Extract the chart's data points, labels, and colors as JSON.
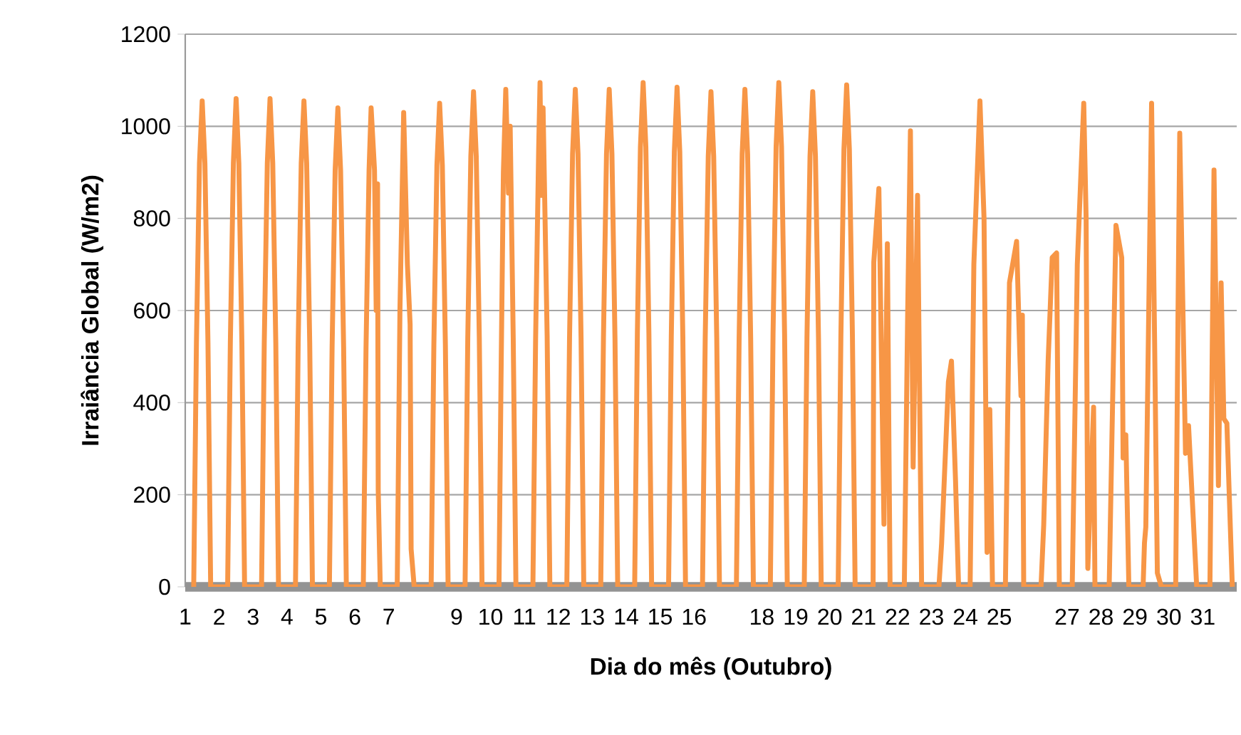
{
  "chart_data": {
    "type": "line",
    "color": "#f79646",
    "xlabel": "Dia do mês (Outubro)",
    "ylabel": "Irraiância Global (W/m2)",
    "grid": "y",
    "xlim": [
      1,
      32
    ],
    "ylim": [
      0,
      1200
    ],
    "yticks": [
      0,
      200,
      400,
      600,
      800,
      1000,
      1200
    ],
    "xticks": [
      1,
      2,
      3,
      4,
      5,
      6,
      7,
      9,
      10,
      11,
      12,
      13,
      14,
      15,
      16,
      18,
      19,
      20,
      21,
      22,
      23,
      24,
      25,
      27,
      28,
      29,
      30,
      31
    ],
    "x": [
      1.25,
      1.33,
      1.42,
      1.5,
      1.58,
      1.67,
      1.75,
      2.25,
      2.33,
      2.42,
      2.5,
      2.58,
      2.67,
      2.75,
      3.25,
      3.33,
      3.42,
      3.5,
      3.58,
      3.67,
      3.75,
      4.25,
      4.33,
      4.42,
      4.5,
      4.58,
      4.67,
      4.75,
      5.25,
      5.33,
      5.42,
      5.5,
      5.58,
      5.67,
      5.75,
      6.25,
      6.33,
      6.42,
      6.48,
      6.58,
      6.63,
      6.67,
      6.69,
      6.75,
      7.25,
      7.33,
      7.44,
      7.55,
      7.63,
      7.66,
      7.75,
      8.25,
      8.33,
      8.42,
      8.5,
      8.58,
      8.67,
      8.75,
      9.25,
      9.33,
      9.42,
      9.5,
      9.58,
      9.67,
      9.75,
      10.25,
      10.31,
      10.38,
      10.45,
      10.53,
      10.58,
      10.67,
      10.75,
      11.25,
      11.33,
      11.42,
      11.46,
      11.5,
      11.55,
      11.67,
      11.75,
      12.25,
      12.33,
      12.42,
      12.5,
      12.58,
      12.67,
      12.75,
      13.25,
      13.33,
      13.42,
      13.5,
      13.58,
      13.67,
      13.75,
      14.25,
      14.33,
      14.42,
      14.5,
      14.58,
      14.67,
      14.75,
      15.25,
      15.33,
      15.42,
      15.5,
      15.58,
      15.67,
      15.75,
      16.25,
      16.33,
      16.42,
      16.5,
      16.58,
      16.67,
      16.75,
      17.25,
      17.33,
      17.42,
      17.5,
      17.58,
      17.67,
      17.75,
      18.25,
      18.33,
      18.42,
      18.5,
      18.58,
      18.67,
      18.75,
      19.25,
      19.33,
      19.42,
      19.5,
      19.58,
      19.67,
      19.75,
      20.25,
      20.33,
      20.42,
      20.5,
      20.58,
      20.67,
      20.75,
      21.28,
      21.3,
      21.45,
      21.6,
      21.7,
      21.78,
      22.2,
      22.3,
      22.38,
      22.46,
      22.59,
      22.71,
      23.22,
      23.3,
      23.5,
      23.59,
      23.71,
      23.8,
      24.14,
      24.25,
      24.43,
      24.55,
      24.64,
      24.72,
      24.8,
      25.18,
      25.3,
      25.51,
      25.64,
      25.68,
      25.72,
      26.23,
      26.31,
      26.44,
      26.56,
      26.69,
      26.77,
      27.15,
      27.3,
      27.49,
      27.56,
      27.61,
      27.78,
      27.82,
      28.24,
      28.32,
      28.44,
      28.61,
      28.65,
      28.73,
      28.82,
      29.24,
      29.28,
      29.32,
      29.49,
      29.58,
      29.66,
      29.78,
      30.2,
      30.27,
      30.32,
      30.49,
      30.58,
      30.82,
      31.21,
      31.33,
      31.46,
      31.54,
      31.62,
      31.71,
      31.87
    ],
    "values": [
      0,
      530,
      920,
      1055,
      920,
      530,
      0,
      0,
      530,
      920,
      1060,
      920,
      530,
      0,
      0,
      530,
      920,
      1060,
      920,
      530,
      0,
      0,
      530,
      920,
      1055,
      920,
      530,
      0,
      0,
      520,
      905,
      1040,
      905,
      520,
      0,
      0,
      520,
      905,
      1040,
      905,
      600,
      875,
      210,
      0,
      0,
      600,
      1030,
      700,
      570,
      82,
      0,
      0,
      525,
      915,
      1050,
      915,
      525,
      0,
      0,
      540,
      935,
      1075,
      935,
      540,
      0,
      0,
      450,
      900,
      1080,
      855,
      1000,
      540,
      0,
      0,
      540,
      950,
      1095,
      850,
      1040,
      545,
      0,
      0,
      540,
      940,
      1080,
      940,
      540,
      0,
      0,
      540,
      940,
      1080,
      940,
      540,
      0,
      0,
      550,
      955,
      1095,
      955,
      550,
      0,
      0,
      545,
      945,
      1085,
      945,
      545,
      0,
      0,
      540,
      935,
      1075,
      935,
      540,
      0,
      0,
      540,
      940,
      1080,
      940,
      540,
      0,
      0,
      550,
      955,
      1095,
      955,
      550,
      0,
      0,
      540,
      935,
      1075,
      935,
      540,
      0,
      0,
      545,
      950,
      1090,
      950,
      545,
      0,
      0,
      705,
      865,
      136,
      745,
      0,
      0,
      600,
      990,
      260,
      850,
      0,
      0,
      95,
      445,
      490,
      230,
      0,
      0,
      700,
      1055,
      800,
      75,
      385,
      0,
      0,
      660,
      750,
      415,
      590,
      0,
      0,
      135,
      490,
      715,
      725,
      0,
      0,
      700,
      1050,
      800,
      40,
      390,
      0,
      0,
      320,
      785,
      715,
      280,
      330,
      0,
      0,
      95,
      130,
      1050,
      530,
      30,
      0,
      0,
      600,
      985,
      290,
      350,
      0,
      0,
      905,
      220,
      660,
      365,
      355,
      0
    ]
  }
}
